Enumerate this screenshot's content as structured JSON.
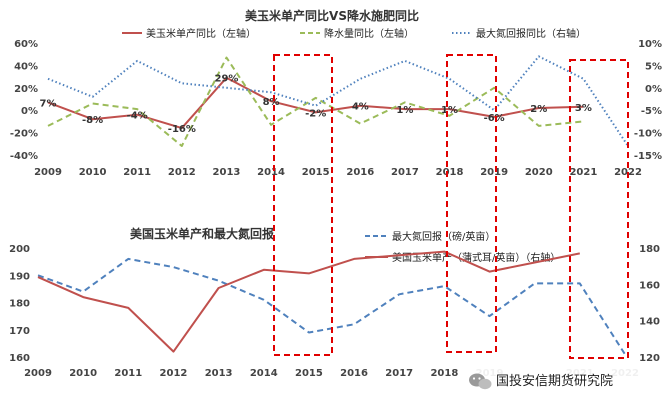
{
  "chart_data": [
    {
      "type": "line",
      "title": "美玉米单产同比VS降水施肥同比",
      "x": [
        "2009",
        "2010",
        "2011",
        "2012",
        "2013",
        "2014",
        "2015",
        "2016",
        "2017",
        "2018",
        "2019",
        "2020",
        "2021",
        "2022"
      ],
      "y_left_ticks": [
        "60%",
        "40%",
        "20%",
        "0%",
        "-20%",
        "-40%"
      ],
      "y_right_ticks": [
        "10%",
        "5%",
        "0%",
        "-5%",
        "-10%",
        "-15%"
      ],
      "ylim_left": [
        -40,
        60
      ],
      "ylim_right": [
        -15,
        10
      ],
      "series": [
        {
          "name": "美玉米单产同比（左轴）",
          "axis": "left",
          "color": "#c0504d",
          "dash": "solid",
          "values": [
            7,
            -8,
            -4,
            -16,
            29,
            8,
            -2,
            4,
            1,
            1,
            -6,
            2,
            3,
            null
          ]
        },
        {
          "name": "降水量同比（左轴）",
          "axis": "left",
          "color": "#9bbb59",
          "dash": "dashed",
          "values": [
            -14,
            6,
            1,
            -32,
            47,
            -13,
            11,
            -12,
            7,
            -5,
            20,
            -14,
            -10,
            null
          ]
        },
        {
          "name": "最大氮回报同比（右轴）",
          "axis": "right",
          "color": "#4f81bd",
          "dash": "dotted",
          "values": [
            2,
            -2,
            6,
            1,
            0,
            -1,
            -4,
            2,
            6,
            2,
            -5,
            7,
            2,
            -13
          ]
        }
      ],
      "data_labels": [
        "7%",
        "-8%",
        "-4%",
        "-16%",
        "29%",
        "8%",
        "-2%",
        "4%",
        "1%",
        "1%",
        "-6%",
        "2%",
        "3%"
      ]
    },
    {
      "type": "line",
      "title": "美国玉米单产和最大氮回报",
      "x": [
        "2009",
        "2010",
        "2011",
        "2012",
        "2013",
        "2014",
        "2015",
        "2016",
        "2017",
        "2018",
        "2019",
        "2020",
        "2021",
        "2022"
      ],
      "x_tick_labels": [
        "2009",
        "2010",
        "2011",
        "2012",
        "2013",
        "2014",
        "2015",
        "2016",
        "2017",
        "2018",
        "2019",
        "",
        "2021",
        "2022"
      ],
      "y_left_ticks": [
        "200",
        "190",
        "180",
        "170",
        "160"
      ],
      "y_right_ticks": [
        "180",
        "160",
        "140",
        "120"
      ],
      "ylim_left": [
        160,
        200
      ],
      "ylim_right": [
        120,
        180
      ],
      "series": [
        {
          "name": "最大氮回报（磅/英亩）",
          "axis": "left",
          "color": "#4f81bd",
          "dash": "dashed",
          "values": [
            190,
            184,
            196,
            193,
            188,
            181,
            169,
            172,
            183,
            186,
            175,
            187,
            187,
            161
          ]
        },
        {
          "name": "美国玉米单产（蒲式耳/英亩）（右轴）",
          "axis": "right",
          "color": "#c0504d",
          "dash": "solid",
          "values": [
            164,
            153,
            147,
            123,
            158,
            168,
            166,
            174,
            176,
            178,
            167,
            172,
            177,
            null
          ]
        }
      ]
    }
  ],
  "watermark": "国投安信期货研究院"
}
